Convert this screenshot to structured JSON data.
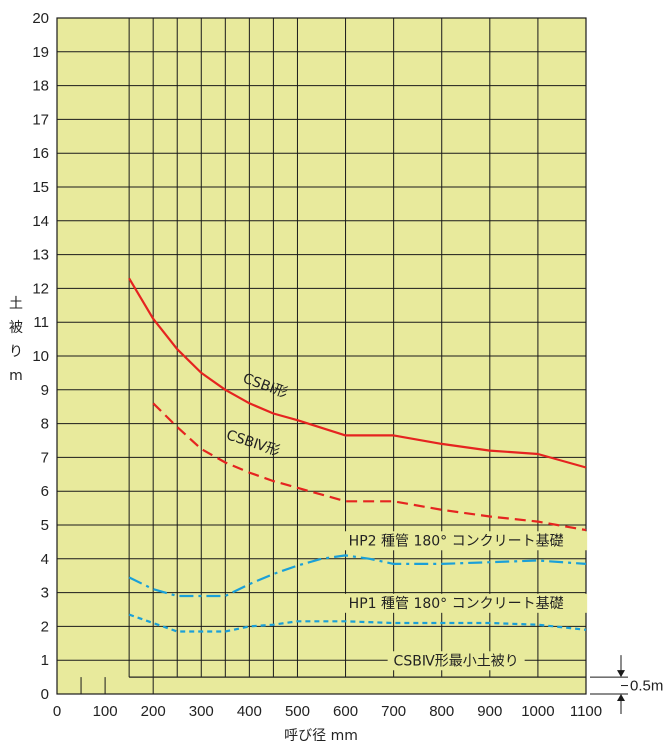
{
  "chart_data": {
    "type": "line",
    "ylabel": [
      "土",
      "被",
      "り",
      "m"
    ],
    "xlabel": "呼び径 mm",
    "xlim": [
      0,
      1100
    ],
    "ylim": [
      0,
      20
    ],
    "x_ticks": [
      0,
      100,
      200,
      300,
      400,
      500,
      600,
      700,
      800,
      900,
      1000,
      1100
    ],
    "y_ticks": [
      0,
      1,
      2,
      3,
      4,
      5,
      6,
      7,
      8,
      9,
      10,
      11,
      12,
      13,
      14,
      15,
      16,
      17,
      18,
      19,
      20
    ],
    "grid": true,
    "background": "#e8ea9c",
    "series": [
      {
        "name": "CSBⅠ形",
        "style": "solid",
        "color": "#e52420",
        "x": [
          150,
          200,
          250,
          300,
          350,
          400,
          450,
          500,
          600,
          700,
          800,
          900,
          1000,
          1100
        ],
        "y": [
          12.3,
          11.1,
          10.2,
          9.5,
          9.0,
          8.6,
          8.3,
          8.1,
          7.65,
          7.65,
          7.4,
          7.2,
          7.1,
          6.7
        ]
      },
      {
        "name": "CSBⅣ形",
        "style": "dashed",
        "color": "#e52420",
        "x": [
          200,
          250,
          300,
          350,
          400,
          450,
          500,
          600,
          700,
          800,
          900,
          1000,
          1100
        ],
        "y": [
          8.6,
          7.9,
          7.25,
          6.85,
          6.55,
          6.3,
          6.1,
          5.7,
          5.7,
          5.45,
          5.25,
          5.1,
          4.85
        ]
      },
      {
        "name": "HP2 種管 180° コンクリート基礎",
        "style": "dashdot",
        "color": "#1aa0d8",
        "x": [
          150,
          200,
          250,
          300,
          350,
          400,
          450,
          500,
          550,
          600,
          650,
          700,
          800,
          900,
          1000,
          1100
        ],
        "y": [
          3.45,
          3.1,
          2.9,
          2.9,
          2.9,
          3.25,
          3.55,
          3.8,
          4.0,
          4.1,
          4.0,
          3.85,
          3.85,
          3.9,
          3.95,
          3.85
        ]
      },
      {
        "name": "HP1 種管 180° コンクリート基礎",
        "style": "dotted",
        "color": "#1aa0d8",
        "x": [
          150,
          200,
          250,
          300,
          350,
          400,
          450,
          500,
          600,
          700,
          800,
          900,
          1000,
          1100
        ],
        "y": [
          2.35,
          2.1,
          1.85,
          1.85,
          1.85,
          2.0,
          2.05,
          2.15,
          2.15,
          2.1,
          2.1,
          2.1,
          2.05,
          1.9
        ]
      },
      {
        "name": "CSBⅣ形最小土被り",
        "style": "solid",
        "color": "#222222",
        "x": [
          150,
          1100
        ],
        "y": [
          0.5,
          0.5
        ]
      }
    ],
    "annotations": [
      {
        "text": "CSBⅠ形",
        "x": 430,
        "y": 9.0,
        "rotate": 20
      },
      {
        "text": "CSBⅣ形",
        "x": 405,
        "y": 7.3,
        "rotate": 18
      },
      {
        "text": "HP2 種管 180° コンクリート基礎",
        "x": 830,
        "y": 4.4
      },
      {
        "text": "HP1 種管 180° コンクリート基礎",
        "x": 830,
        "y": 2.55
      },
      {
        "text": "CSBⅣ形最小土被り",
        "x": 830,
        "y": 0.85
      },
      {
        "text": "0.5m",
        "x": 0,
        "y": 0
      }
    ]
  }
}
